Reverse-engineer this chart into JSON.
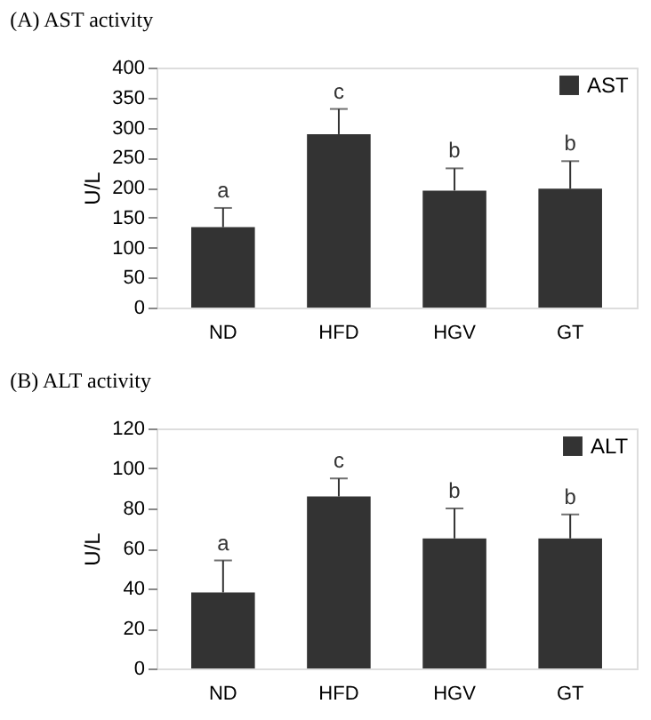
{
  "chart_data": [
    {
      "type": "bar",
      "title": "(A)  AST  activity",
      "ylabel": "U/L",
      "categories": [
        "ND",
        "HFD",
        "HGV",
        "GT"
      ],
      "series": [
        {
          "name": "AST",
          "color": "#333333",
          "values": [
            134,
            289,
            195,
            198
          ],
          "errors": [
            [
              134,
              166
            ],
            [
              289,
              331
            ],
            [
              195,
              232
            ],
            [
              198,
              244
            ]
          ]
        }
      ],
      "ylim": [
        0,
        400
      ],
      "yticks": [
        0,
        50,
        100,
        150,
        200,
        250,
        300,
        350,
        400
      ],
      "grid": false,
      "legend": "top right",
      "annotations": [
        {
          "text": "a",
          "x": "ND",
          "y": 166
        },
        {
          "text": "c",
          "x": "HFD",
          "y": 331
        },
        {
          "text": "b",
          "x": "HGV",
          "y": 232
        },
        {
          "text": "b",
          "x": "GT",
          "y": 244
        }
      ]
    },
    {
      "type": "bar",
      "title": "(B)  ALT  activity",
      "ylabel": "U/L",
      "categories": [
        "ND",
        "HFD",
        "HGV",
        "GT"
      ],
      "series": [
        {
          "name": "ALT",
          "color": "#333333",
          "values": [
            38,
            86,
            65,
            65
          ],
          "errors": [
            [
              38,
              54
            ],
            [
              86,
              95
            ],
            [
              65,
              80
            ],
            [
              65,
              77
            ]
          ]
        }
      ],
      "ylim": [
        0,
        120
      ],
      "yticks": [
        0,
        20,
        40,
        60,
        80,
        100,
        120
      ],
      "grid": false,
      "legend": "top right",
      "annotations": [
        {
          "text": "a",
          "x": "ND",
          "y": 54
        },
        {
          "text": "c",
          "x": "HFD",
          "y": 95
        },
        {
          "text": "b",
          "x": "HGV",
          "y": 80
        },
        {
          "text": "b",
          "x": "GT",
          "y": 77
        }
      ]
    }
  ]
}
